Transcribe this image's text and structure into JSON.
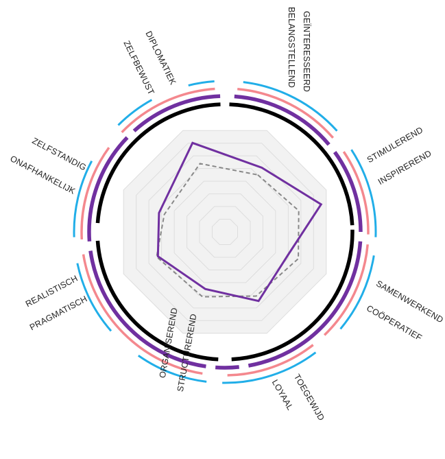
{
  "chart_data": {
    "type": "radar",
    "max": 8,
    "axes": [
      {
        "labels": [
          "BELANGSTELLEND",
          "GEÏNTERESSEERD"
        ],
        "value": 5.4,
        "benchmark": 4.8
      },
      {
        "labels": [
          "STIMULEREND",
          "INSPIREREND"
        ],
        "value": 7.3,
        "benchmark": 5.6
      },
      {
        "labels": [
          "SAMENWERKEND",
          "COÖPERATIEF"
        ],
        "value": 4.9,
        "benchmark": 5.7
      },
      {
        "labels": [
          "TOEGEWIJD",
          "LOYAAL"
        ],
        "value": 5.6,
        "benchmark": 5.2
      },
      {
        "labels": [
          "ORGANISEREND",
          "STRUCTUREREND"
        ],
        "value": 4.4,
        "benchmark": 5.0
      },
      {
        "labels": [
          "REALISTISCH",
          "PRAGMATISCH"
        ],
        "value": 5.2,
        "benchmark": 5.3
      },
      {
        "labels": [
          "ZELFSTANDIG",
          "ONAFHANKELIJK"
        ],
        "value": 5.0,
        "benchmark": 4.6
      },
      {
        "labels": [
          "DIPLOMATIEK",
          "ZELFBEWUST"
        ],
        "value": 6.9,
        "benchmark": 5.3
      }
    ],
    "grid_levels": 8,
    "series": [
      {
        "values": [
          5.4,
          7.3,
          4.9,
          5.6,
          4.4,
          5.2,
          5.0,
          6.9
        ]
      },
      {
        "values": [
          4.8,
          5.6,
          5.7,
          5.2,
          5.0,
          5.3,
          4.6,
          5.3
        ]
      }
    ],
    "colors": {
      "series": "#7030a0",
      "benchmark": "#888888",
      "ring_inner": "#000000",
      "ring_purple": "#7030a0",
      "ring_pink": "#f4888e",
      "ring_blue": "#21aee8",
      "grid": "#dddddd",
      "fill": "#f2f2f2"
    }
  }
}
